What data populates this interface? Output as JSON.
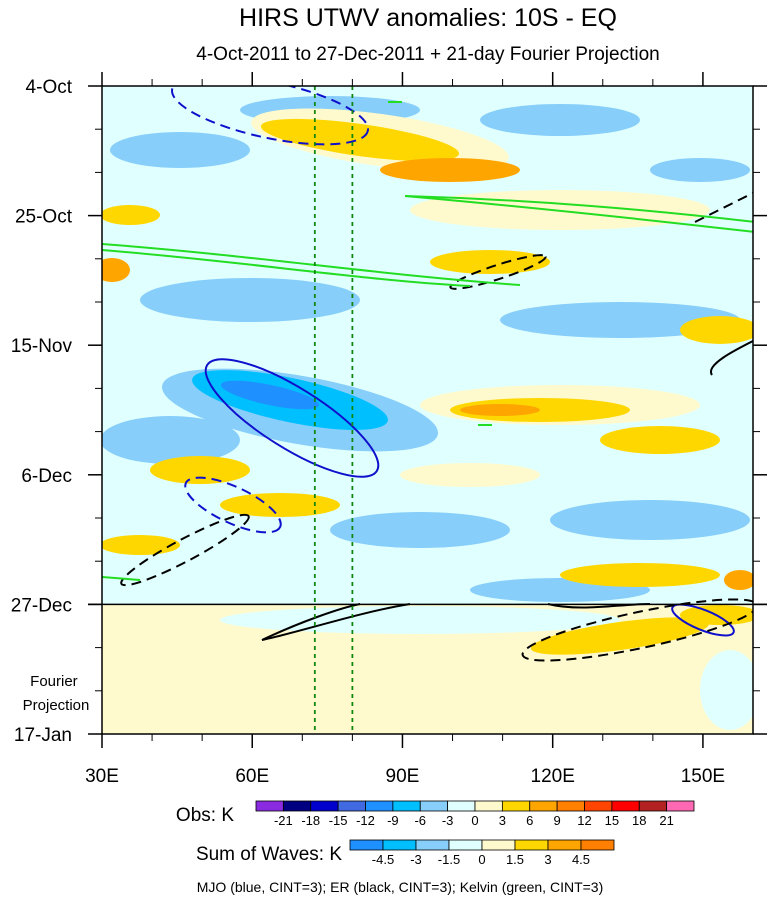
{
  "chart_data": {
    "type": "heatmap",
    "title": "HIRS UTWV anomalies: 10S - EQ",
    "subtitle": "4-Oct-2011 to 27-Dec-2011 + 21-day Fourier Projection",
    "y_tick_labels": [
      "4-Oct",
      "25-Oct",
      "15-Nov",
      "6-Dec",
      "27-Dec",
      "17-Jan"
    ],
    "x_tick_labels": [
      "30E",
      "60E",
      "90E",
      "120E",
      "150E"
    ],
    "x_range": [
      30,
      160
    ],
    "y_range_days": [
      0,
      105
    ],
    "projection_label": "Fourier Projection",
    "projection_start_label": "27-Dec",
    "reference_longitudes": [
      72.5,
      80
    ],
    "obs_legend": {
      "label": "Obs: K",
      "levels": [
        "-21",
        "-18",
        "-15",
        "-12",
        "-9",
        "-6",
        "-3",
        "0",
        "3",
        "6",
        "9",
        "12",
        "15",
        "18",
        "21"
      ],
      "colors": [
        "#8a2be2",
        "#000080",
        "#0000cd",
        "#4169e1",
        "#1e90ff",
        "#00bfff",
        "#87cefa",
        "#e0ffff",
        "#fffacd",
        "#ffd700",
        "#ffa500",
        "#ff7f00",
        "#ff4500",
        "#ff0000",
        "#b22222",
        "#ff69b4"
      ]
    },
    "waves_legend": {
      "label": "Sum of Waves: K",
      "levels": [
        "-4.5",
        "-3",
        "-1.5",
        "0",
        "1.5",
        "3",
        "4.5"
      ],
      "colors": [
        "#1e90ff",
        "#00bfff",
        "#87cefa",
        "#e0ffff",
        "#fffacd",
        "#ffd700",
        "#ffa500",
        "#ff7f00"
      ]
    },
    "footnote": "MJO (blue, CINT=3); ER (black, CINT=3); Kelvin (green, CINT=3)",
    "contours": {
      "mjo_color": "#1010cc",
      "er_color": "#000000",
      "kelvin_color": "#22dd22"
    }
  }
}
